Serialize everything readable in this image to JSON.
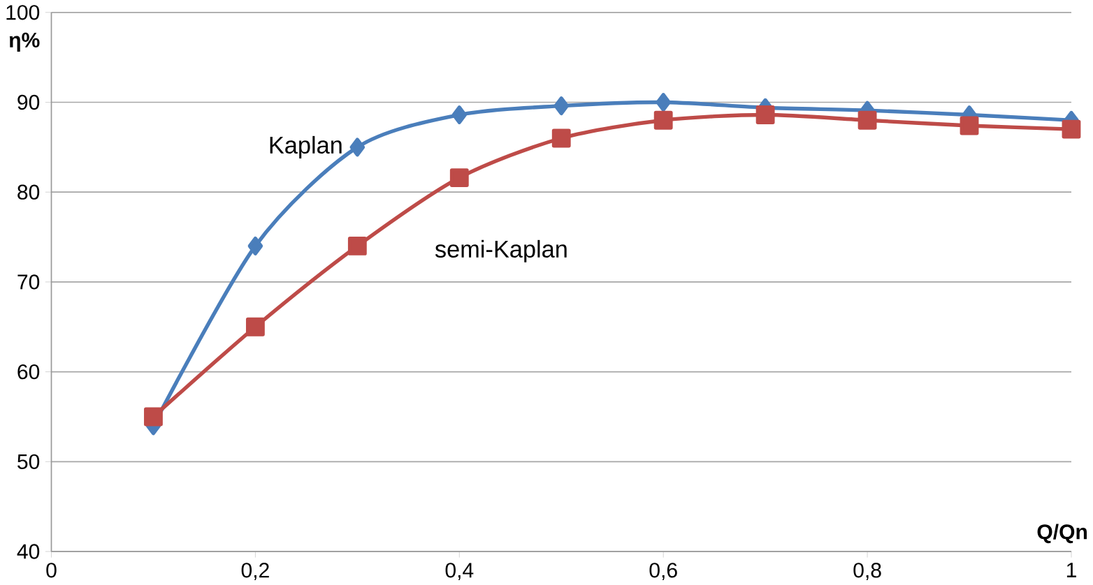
{
  "chart_data": {
    "type": "line",
    "xlabel": "Q/Qn",
    "ylabel": "η%",
    "x": [
      0.1,
      0.2,
      0.3,
      0.4,
      0.5,
      0.6,
      0.7,
      0.8,
      0.9,
      1
    ],
    "series": [
      {
        "name": "Kaplan",
        "color": "#4a7ebb",
        "marker": "diamond",
        "values": [
          54,
          74,
          85,
          88.6,
          89.6,
          90,
          89.4,
          89.1,
          88.6,
          88
        ]
      },
      {
        "name": "semi-Kaplan",
        "color": "#be4b48",
        "marker": "square",
        "values": [
          55,
          65,
          74,
          81.6,
          86,
          88,
          88.6,
          88,
          87.4,
          87
        ]
      }
    ],
    "xlim": [
      0,
      1
    ],
    "ylim": [
      40,
      100
    ],
    "xticks": [
      0,
      {
        "value": 0.2,
        "label": "0,2"
      },
      {
        "value": 0.4,
        "label": "0,4"
      },
      {
        "value": 0.6,
        "label": "0,6"
      },
      {
        "value": 0.8,
        "label": "0,8"
      },
      1
    ],
    "yticks": [
      40,
      50,
      60,
      70,
      80,
      90,
      100
    ],
    "grid": "y"
  }
}
